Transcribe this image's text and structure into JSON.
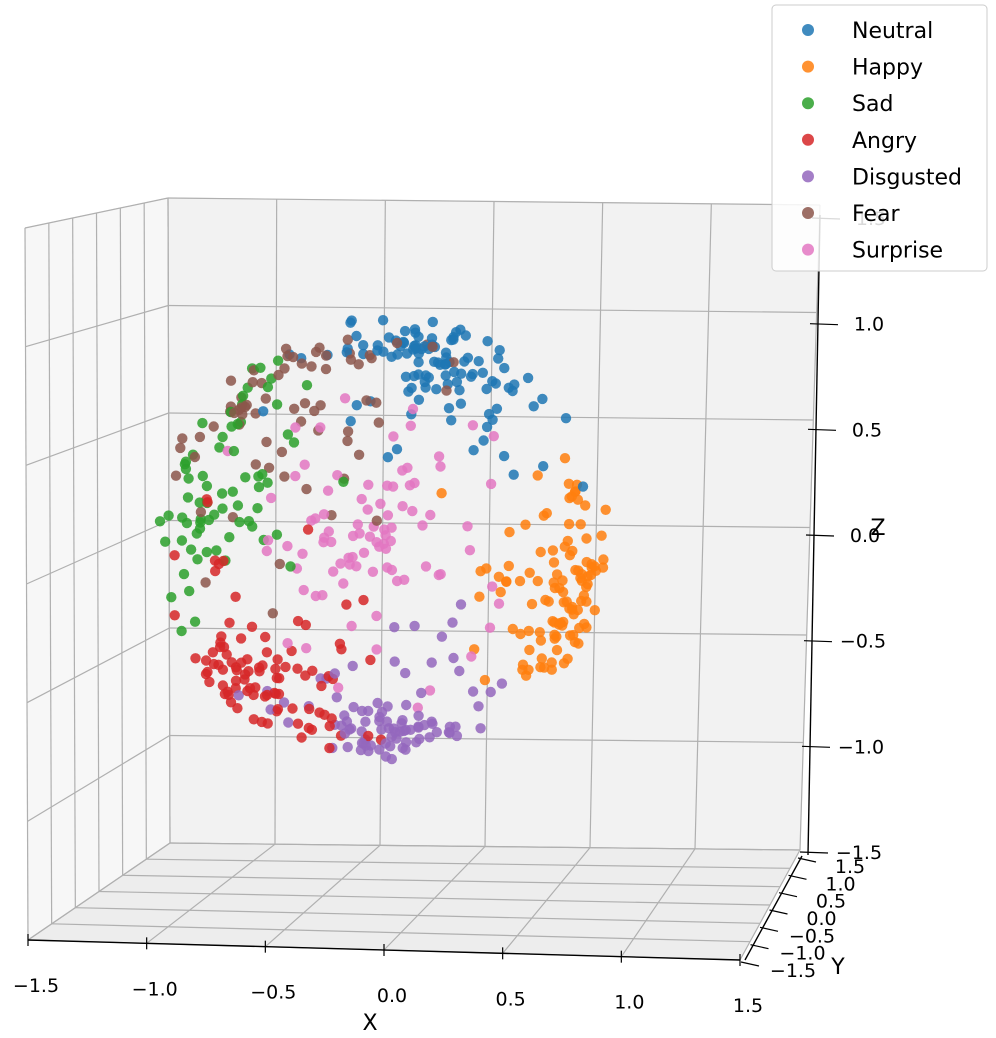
{
  "chart_data": {
    "type": "scatter",
    "projection": "3d",
    "title": "",
    "xlabel": "X",
    "ylabel": "Y",
    "zlabel": "Z",
    "xlim": [
      -1.5,
      1.5
    ],
    "ylim": [
      -1.5,
      1.5
    ],
    "zlim": [
      -1.5,
      1.5
    ],
    "x_ticks": [
      "−1.5",
      "−1.0",
      "−0.5",
      "0.0",
      "0.5",
      "1.0",
      "1.5"
    ],
    "y_ticks": [
      "−1.5",
      "−1.0",
      "−0.5",
      "0.0",
      "0.5",
      "1.0",
      "1.5"
    ],
    "z_ticks": [
      "−1.5",
      "−1.0",
      "−0.5",
      "0.0",
      "0.5",
      "1.0",
      "1.5"
    ],
    "grid": true,
    "legend_position": "top-right",
    "series": [
      {
        "name": "Neutral",
        "color": "#1f77b4",
        "center": [
          0.3,
          0.0,
          0.85
        ],
        "count": 110
      },
      {
        "name": "Happy",
        "color": "#ff7f0e",
        "center": [
          1.05,
          0.0,
          -0.3
        ],
        "count": 110
      },
      {
        "name": "Sad",
        "color": "#2ca02c",
        "center": [
          -0.75,
          0.0,
          0.2
        ],
        "count": 70
      },
      {
        "name": "Angry",
        "color": "#d62728",
        "center": [
          -0.6,
          0.0,
          -0.65
        ],
        "count": 95
      },
      {
        "name": "Disgusted",
        "color": "#9467bd",
        "center": [
          0.05,
          0.0,
          -1.05
        ],
        "count": 90
      },
      {
        "name": "Fear",
        "color": "#8c564b",
        "center": [
          -0.3,
          0.0,
          0.5
        ],
        "count": 70
      },
      {
        "name": "Surprise",
        "color": "#e377c2",
        "center": [
          -0.05,
          0.0,
          0.0
        ],
        "count": 90
      }
    ]
  }
}
